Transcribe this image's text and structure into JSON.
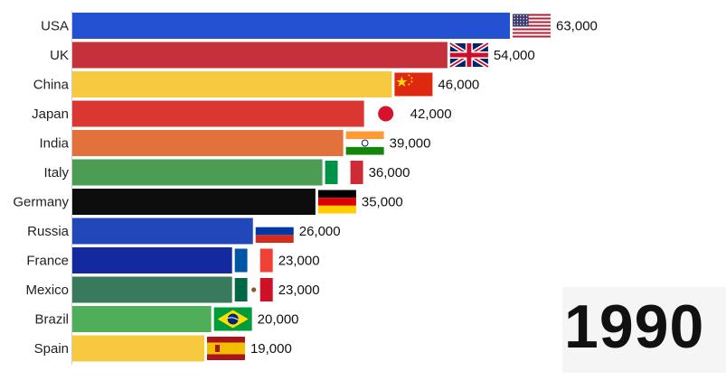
{
  "chart_data": {
    "type": "bar",
    "orientation": "horizontal",
    "title": "",
    "xlabel": "",
    "ylabel": "",
    "categories": [
      "USA",
      "UK",
      "China",
      "Japan",
      "India",
      "Italy",
      "Germany",
      "Russia",
      "France",
      "Mexico",
      "Brazil",
      "Spain"
    ],
    "values": [
      63000,
      54000,
      46000,
      42000,
      39000,
      36000,
      35000,
      26000,
      23000,
      23000,
      20000,
      19000
    ],
    "value_labels": [
      "63,000",
      "54,000",
      "46,000",
      "42,000",
      "39,000",
      "36,000",
      "35,000",
      "26,000",
      "23,000",
      "23,000",
      "20,000",
      "19,000"
    ],
    "colors": [
      "#2451d1",
      "#c5313a",
      "#f6c93e",
      "#db3732",
      "#e2713c",
      "#4d9c54",
      "#0d0d0d",
      "#2148b8",
      "#14299e",
      "#3a7a5c",
      "#4fae5a",
      "#f6c93e"
    ],
    "icons": [
      "usa-flag-icon",
      "uk-flag-icon",
      "china-flag-icon",
      "japan-flag-icon",
      "india-flag-icon",
      "italy-flag-icon",
      "germany-flag-icon",
      "russia-flag-icon",
      "france-flag-icon",
      "mexico-flag-icon",
      "brazil-flag-icon",
      "spain-flag-icon"
    ],
    "xlim": [
      0,
      63000
    ],
    "grid": false,
    "legend": "none",
    "year": "1990"
  }
}
